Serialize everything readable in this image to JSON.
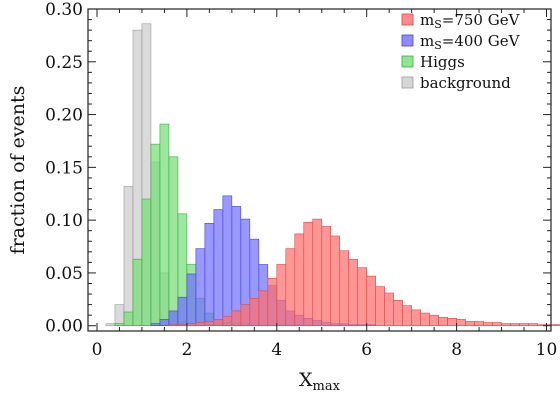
{
  "chart_data": {
    "type": "histogram",
    "title": "",
    "xlabel": "X",
    "xlabel_sub": "max",
    "ylabel": "fraction of events",
    "xlim": [
      -0.2,
      10.1
    ],
    "ylim": [
      -0.005,
      0.3
    ],
    "bin_width": 0.2,
    "x_ticks": [
      0,
      2,
      4,
      6,
      8,
      10
    ],
    "x_tick_labels": [
      "0",
      "2",
      "4",
      "6",
      "8",
      "10"
    ],
    "y_ticks": [
      0.0,
      0.05,
      0.1,
      0.15,
      0.2,
      0.25,
      0.3
    ],
    "y_tick_labels": [
      "0.00",
      "0.05",
      "0.10",
      "0.15",
      "0.20",
      "0.25",
      "0.30"
    ],
    "grid": false,
    "legend_position": "top-right",
    "draw_order": [
      "background",
      "Higgs",
      "m400",
      "m750"
    ],
    "series": [
      {
        "key": "m750",
        "legend_main": "m",
        "legend_sub": "S",
        "legend_rest": "=750 GeV",
        "color": "#ff6e6e",
        "edge": "#d94a4a",
        "x_start": 1.6,
        "values": [
          0.001,
          0.001,
          0.002,
          0.003,
          0.004,
          0.006,
          0.009,
          0.014,
          0.02,
          0.026,
          0.033,
          0.045,
          0.058,
          0.073,
          0.087,
          0.098,
          0.101,
          0.094,
          0.085,
          0.071,
          0.063,
          0.055,
          0.047,
          0.037,
          0.031,
          0.024,
          0.019,
          0.015,
          0.012,
          0.01,
          0.008,
          0.007,
          0.006,
          0.004,
          0.004,
          0.003,
          0.003,
          0.002,
          0.002,
          0.002,
          0.002,
          0.001,
          0.001,
          0.001
        ]
      },
      {
        "key": "m400",
        "legend_main": "m",
        "legend_sub": "S",
        "legend_rest": "=400 GeV",
        "color": "#7070ff",
        "edge": "#4444cc",
        "x_start": 1.2,
        "values": [
          0.002,
          0.006,
          0.014,
          0.027,
          0.049,
          0.073,
          0.097,
          0.11,
          0.123,
          0.113,
          0.101,
          0.082,
          0.058,
          0.038,
          0.024,
          0.014,
          0.01,
          0.007,
          0.005,
          0.003,
          0.002,
          0.002,
          0.001,
          0.001,
          0.001
        ]
      },
      {
        "key": "Higgs",
        "legend_main": "Higgs",
        "legend_sub": "",
        "legend_rest": "",
        "color": "#77dd77",
        "edge": "#3fa83f",
        "x_start": 0.4,
        "values": [
          0.002,
          0.013,
          0.063,
          0.12,
          0.172,
          0.191,
          0.16,
          0.106,
          0.058,
          0.026,
          0.012,
          0.006,
          0.003,
          0.002,
          0.001
        ]
      },
      {
        "key": "background",
        "legend_main": "background",
        "legend_sub": "",
        "legend_rest": "",
        "color": "#cccccc",
        "edge": "#9a9a9a",
        "x_start": 0.2,
        "values": [
          0.002,
          0.02,
          0.132,
          0.28,
          0.286,
          0.155,
          0.05,
          0.013,
          0.004,
          0.001
        ]
      }
    ]
  }
}
